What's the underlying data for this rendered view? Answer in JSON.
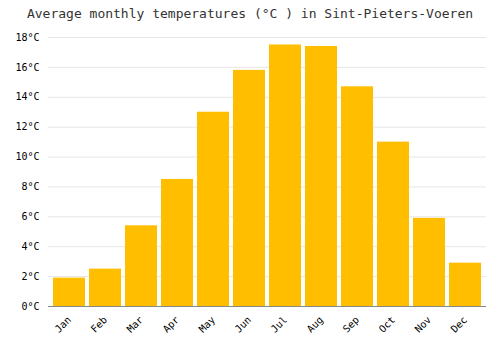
{
  "chart_data": {
    "type": "bar",
    "title": "Average monthly temperatures (°C ) in Sint-Pieters-Voeren",
    "categories": [
      "Jan",
      "Feb",
      "Mar",
      "Apr",
      "May",
      "Jun",
      "Jul",
      "Aug",
      "Sep",
      "Oct",
      "Nov",
      "Dec"
    ],
    "values": [
      1.9,
      2.5,
      5.4,
      8.5,
      13.0,
      15.8,
      17.5,
      17.4,
      14.7,
      11.0,
      5.9,
      2.9
    ],
    "color": "#FFBF00",
    "ylim": [
      0,
      18
    ],
    "yticks": [
      {
        "value": 0,
        "label": "0°C"
      },
      {
        "value": 2,
        "label": "2°C"
      },
      {
        "value": 4,
        "label": "4°C"
      },
      {
        "value": 6,
        "label": "6°C"
      },
      {
        "value": 8,
        "label": "8°C"
      },
      {
        "value": 10,
        "label": "10°C"
      },
      {
        "value": 12,
        "label": "12°C"
      },
      {
        "value": 14,
        "label": "14°C"
      },
      {
        "value": 16,
        "label": "16°C"
      },
      {
        "value": 18,
        "label": "18°C"
      }
    ],
    "grid": true
  }
}
